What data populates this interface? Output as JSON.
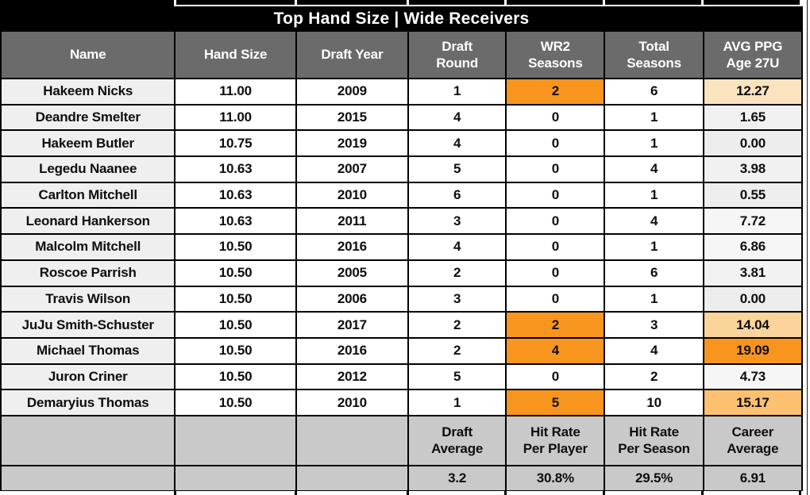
{
  "title": "Top Hand Size | Wide Receivers",
  "columns": [
    "Name",
    "Hand Size",
    "Draft Year",
    "Draft\nRound",
    "WR2\nSeasons",
    "Total\nSeasons",
    "AVG PPG\nAge 27U"
  ],
  "rows": [
    {
      "name": "Hakeem Nicks",
      "hand_size": "11.00",
      "draft_year": "2009",
      "draft_round": "1",
      "wr2_seasons": "2",
      "wr2_highlight": true,
      "total_seasons": "6",
      "avg_ppg": "12.27",
      "avg_ppg_bg": "#fbe3bd"
    },
    {
      "name": "Deandre Smelter",
      "hand_size": "11.00",
      "draft_year": "2015",
      "draft_round": "4",
      "wr2_seasons": "0",
      "wr2_highlight": false,
      "total_seasons": "1",
      "avg_ppg": "1.65",
      "avg_ppg_bg": "#f0f0f0"
    },
    {
      "name": "Hakeem Butler",
      "hand_size": "10.75",
      "draft_year": "2019",
      "draft_round": "4",
      "wr2_seasons": "0",
      "wr2_highlight": false,
      "total_seasons": "1",
      "avg_ppg": "0.00",
      "avg_ppg_bg": "#ededed"
    },
    {
      "name": "Legedu Naanee",
      "hand_size": "10.63",
      "draft_year": "2007",
      "draft_round": "5",
      "wr2_seasons": "0",
      "wr2_highlight": false,
      "total_seasons": "4",
      "avg_ppg": "3.98",
      "avg_ppg_bg": "#f1f1f1"
    },
    {
      "name": "Carlton Mitchell",
      "hand_size": "10.63",
      "draft_year": "2010",
      "draft_round": "6",
      "wr2_seasons": "0",
      "wr2_highlight": false,
      "total_seasons": "1",
      "avg_ppg": "0.55",
      "avg_ppg_bg": "#eeeeee"
    },
    {
      "name": "Leonard Hankerson",
      "hand_size": "10.63",
      "draft_year": "2011",
      "draft_round": "3",
      "wr2_seasons": "0",
      "wr2_highlight": false,
      "total_seasons": "4",
      "avg_ppg": "7.72",
      "avg_ppg_bg": "#f6f6f6"
    },
    {
      "name": "Malcolm Mitchell",
      "hand_size": "10.50",
      "draft_year": "2016",
      "draft_round": "4",
      "wr2_seasons": "0",
      "wr2_highlight": false,
      "total_seasons": "1",
      "avg_ppg": "6.86",
      "avg_ppg_bg": "#f5f5f5"
    },
    {
      "name": "Roscoe Parrish",
      "hand_size": "10.50",
      "draft_year": "2005",
      "draft_round": "2",
      "wr2_seasons": "0",
      "wr2_highlight": false,
      "total_seasons": "6",
      "avg_ppg": "3.81",
      "avg_ppg_bg": "#f2f2f2"
    },
    {
      "name": "Travis Wilson",
      "hand_size": "10.50",
      "draft_year": "2006",
      "draft_round": "3",
      "wr2_seasons": "0",
      "wr2_highlight": false,
      "total_seasons": "1",
      "avg_ppg": "0.00",
      "avg_ppg_bg": "#ededed"
    },
    {
      "name": "JuJu Smith-Schuster",
      "hand_size": "10.50",
      "draft_year": "2017",
      "draft_round": "2",
      "wr2_seasons": "2",
      "wr2_highlight": true,
      "total_seasons": "3",
      "avg_ppg": "14.04",
      "avg_ppg_bg": "#fbd49c"
    },
    {
      "name": "Michael Thomas",
      "hand_size": "10.50",
      "draft_year": "2016",
      "draft_round": "2",
      "wr2_seasons": "4",
      "wr2_highlight": true,
      "total_seasons": "4",
      "avg_ppg": "19.09",
      "avg_ppg_bg": "#f8951e"
    },
    {
      "name": "Juron Criner",
      "hand_size": "10.50",
      "draft_year": "2012",
      "draft_round": "5",
      "wr2_seasons": "0",
      "wr2_highlight": false,
      "total_seasons": "2",
      "avg_ppg": "4.73",
      "avg_ppg_bg": "#f6f6f6"
    },
    {
      "name": "Demaryius Thomas",
      "hand_size": "10.50",
      "draft_year": "2010",
      "draft_round": "1",
      "wr2_seasons": "5",
      "wr2_highlight": true,
      "total_seasons": "10",
      "avg_ppg": "15.17",
      "avg_ppg_bg": "#fbc170"
    }
  ],
  "footer": {
    "labels": [
      "Draft\nAverage",
      "Hit Rate\nPer Player",
      "Hit Rate\nPer Season",
      "Career\nAverage"
    ],
    "values": [
      "3.2",
      "30.8%",
      "29.5%",
      "6.91"
    ]
  },
  "colors": {
    "accent_orange": "#f8951e",
    "header_gray": "#6b6b6b",
    "footer_gray": "#c9c9c9",
    "name_cell_gray": "#efefef",
    "title_black": "#000000"
  },
  "chart_data": {
    "type": "table",
    "title": "Top Hand Size | Wide Receivers",
    "columns": [
      "Name",
      "Hand Size",
      "Draft Year",
      "Draft Round",
      "WR2 Seasons",
      "Total Seasons",
      "AVG PPG Age 27U"
    ],
    "rows": [
      [
        "Hakeem Nicks",
        11.0,
        2009,
        1,
        2,
        6,
        12.27
      ],
      [
        "Deandre Smelter",
        11.0,
        2015,
        4,
        0,
        1,
        1.65
      ],
      [
        "Hakeem Butler",
        10.75,
        2019,
        4,
        0,
        1,
        0.0
      ],
      [
        "Legedu Naanee",
        10.63,
        2007,
        5,
        0,
        4,
        3.98
      ],
      [
        "Carlton Mitchell",
        10.63,
        2010,
        6,
        0,
        1,
        0.55
      ],
      [
        "Leonard Hankerson",
        10.63,
        2011,
        3,
        0,
        4,
        7.72
      ],
      [
        "Malcolm Mitchell",
        10.5,
        2016,
        4,
        0,
        1,
        6.86
      ],
      [
        "Roscoe Parrish",
        10.5,
        2005,
        2,
        0,
        6,
        3.81
      ],
      [
        "Travis Wilson",
        10.5,
        2006,
        3,
        0,
        1,
        0.0
      ],
      [
        "JuJu Smith-Schuster",
        10.5,
        2017,
        2,
        2,
        3,
        14.04
      ],
      [
        "Michael Thomas",
        10.5,
        2016,
        2,
        4,
        4,
        19.09
      ],
      [
        "Juron Criner",
        10.5,
        2012,
        5,
        0,
        2,
        4.73
      ],
      [
        "Demaryius Thomas",
        10.5,
        2010,
        1,
        5,
        10,
        15.17
      ]
    ],
    "summary": {
      "draft_average": 3.2,
      "hit_rate_per_player": "30.8%",
      "hit_rate_per_season": "29.5%",
      "career_average": 6.91
    },
    "highlighted_wr2_rows": [
      "Hakeem Nicks",
      "JuJu Smith-Schuster",
      "Michael Thomas",
      "Demaryius Thomas"
    ]
  }
}
